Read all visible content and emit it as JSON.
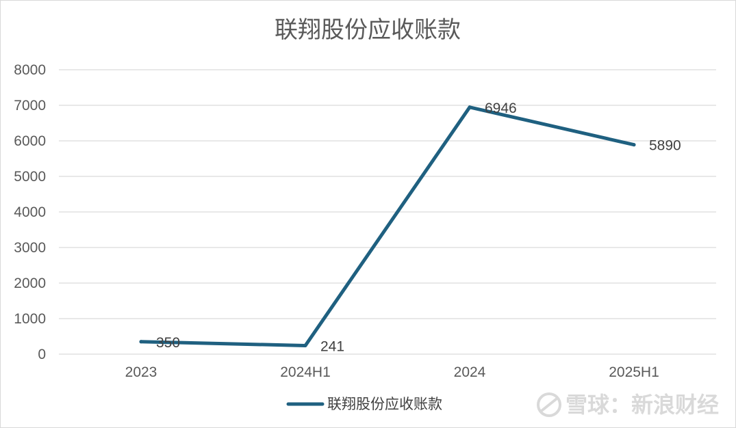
{
  "chart_data": {
    "type": "line",
    "title": "联翔股份应收账款",
    "categories": [
      "2023",
      "2024H1",
      "2024",
      "2025H1"
    ],
    "series": [
      {
        "name": "联翔股份应收账款",
        "values": [
          350,
          241,
          6946,
          5890
        ],
        "color": "#1f6080"
      }
    ],
    "ylim": [
      0,
      8000
    ],
    "yticks": [
      "0",
      "1000",
      "2000",
      "3000",
      "4000",
      "5000",
      "6000",
      "7000",
      "8000"
    ],
    "grid": true,
    "legend_position": "bottom"
  },
  "watermark": {
    "text": "雪球：新浪财经"
  }
}
